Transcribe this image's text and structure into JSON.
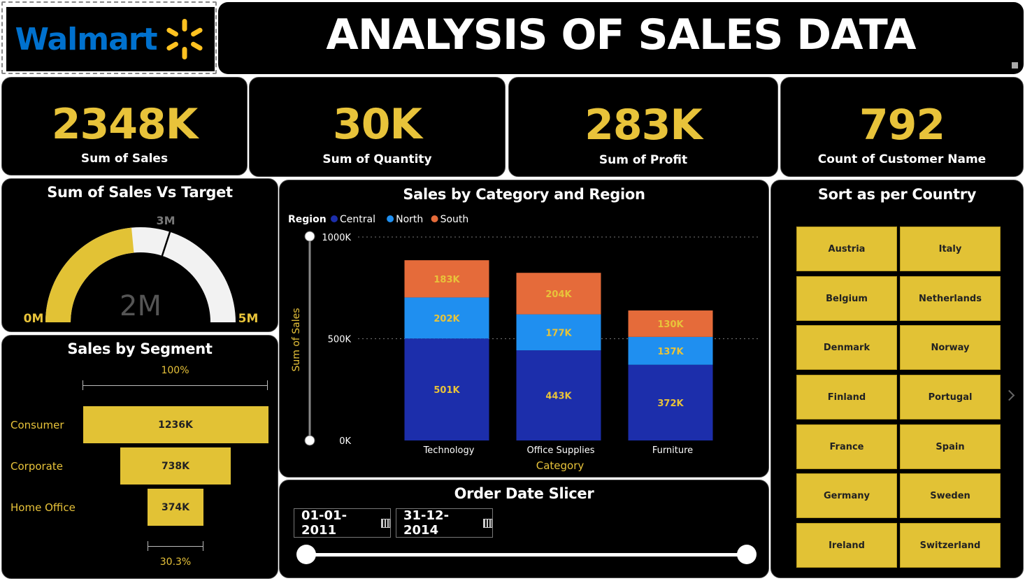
{
  "logo": {
    "text": "Walmart"
  },
  "header": {
    "title": "ANALYSIS OF SALES DATA"
  },
  "kpis": [
    {
      "value": "2348K",
      "label": "Sum of Sales"
    },
    {
      "value": "30K",
      "label": "Sum of Quantity"
    },
    {
      "value": "283K",
      "label": "Sum of Profit"
    },
    {
      "value": "792",
      "label": "Count of Customer Name"
    }
  ],
  "gauge": {
    "title": "Sum of Sales Vs Target",
    "min_label": "0M",
    "max_label": "5M",
    "target_label": "3M",
    "center_label": "2M",
    "value_fraction": 0.4696,
    "target_fraction": 0.6
  },
  "segment": {
    "title": "Sales by Segment",
    "top_pct": "100%",
    "bottom_pct": "30.3%",
    "items": [
      {
        "label": "Consumer",
        "value_label": "1236K",
        "value": 1236
      },
      {
        "label": "Corporate",
        "value_label": "738K",
        "value": 738
      },
      {
        "label": "Home Office",
        "value_label": "374K",
        "value": 374
      }
    ]
  },
  "chart_data": {
    "type": "bar",
    "title": "Sales by Category and Region",
    "xlabel": "Category",
    "ylabel": "Sum of Sales",
    "legend_title": "Region",
    "legend_position": "top-left",
    "stacked": true,
    "categories": [
      "Technology",
      "Office Supplies",
      "Furniture"
    ],
    "series": [
      {
        "name": "Central",
        "color": "#1c2eab",
        "values": [
          501,
          443,
          372
        ],
        "labels": [
          "501K",
          "443K",
          "372K"
        ]
      },
      {
        "name": "North",
        "color": "#1f8ff0",
        "values": [
          202,
          177,
          137
        ],
        "labels": [
          "202K",
          "177K",
          "137K"
        ]
      },
      {
        "name": "South",
        "color": "#e56b3a",
        "values": [
          183,
          204,
          130
        ],
        "labels": [
          "183K",
          "204K",
          "130K"
        ]
      }
    ],
    "ylim": [
      0,
      1000
    ],
    "yticks": [
      {
        "value": 0,
        "label": "0K"
      },
      {
        "value": 500,
        "label": "500K"
      },
      {
        "value": 1000,
        "label": "1000K"
      }
    ],
    "grid": true
  },
  "slicer": {
    "title": "Order Date Slicer",
    "start": "01-01-2011",
    "end": "31-12-2014"
  },
  "countries": {
    "title": "Sort as per Country",
    "items": [
      "Austria",
      "Italy",
      "Belgium",
      "Netherlands",
      "Denmark",
      "Norway",
      "Finland",
      "Portugal",
      "France",
      "Spain",
      "Germany",
      "Sweden",
      "Ireland",
      "Switzerland"
    ]
  },
  "colors": {
    "accent": "#e8c33a",
    "background": "#000000",
    "logo_blue": "#0071ce",
    "logo_yellow": "#ffc220"
  }
}
